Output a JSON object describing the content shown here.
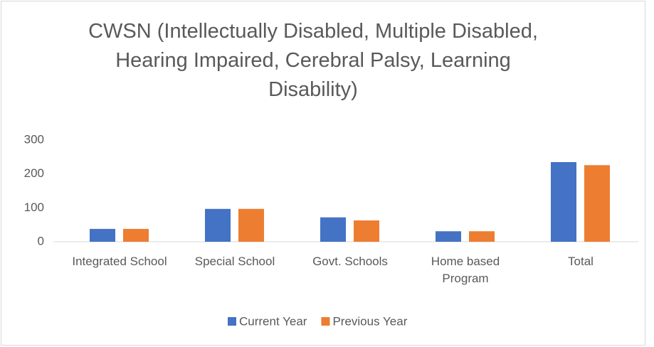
{
  "chart_data": {
    "type": "bar",
    "title": "CWSN (Intellectually Disabled, Multiple Disabled, Hearing Impaired, Cerebral Palsy, Learning Disability)",
    "categories": [
      "Integrated School",
      "Special School",
      "Govt. Schools",
      "Home based Program",
      "Total"
    ],
    "series": [
      {
        "name": "Current Year",
        "color": "#4472c4",
        "values": [
          38,
          97,
          72,
          31,
          235
        ]
      },
      {
        "name": "Previous Year",
        "color": "#ed7d31",
        "values": [
          38,
          97,
          63,
          31,
          226
        ]
      }
    ],
    "ylim": [
      0,
      300
    ],
    "yticks": [
      0,
      100,
      200,
      300
    ],
    "grid": false,
    "legend": "bottom"
  }
}
